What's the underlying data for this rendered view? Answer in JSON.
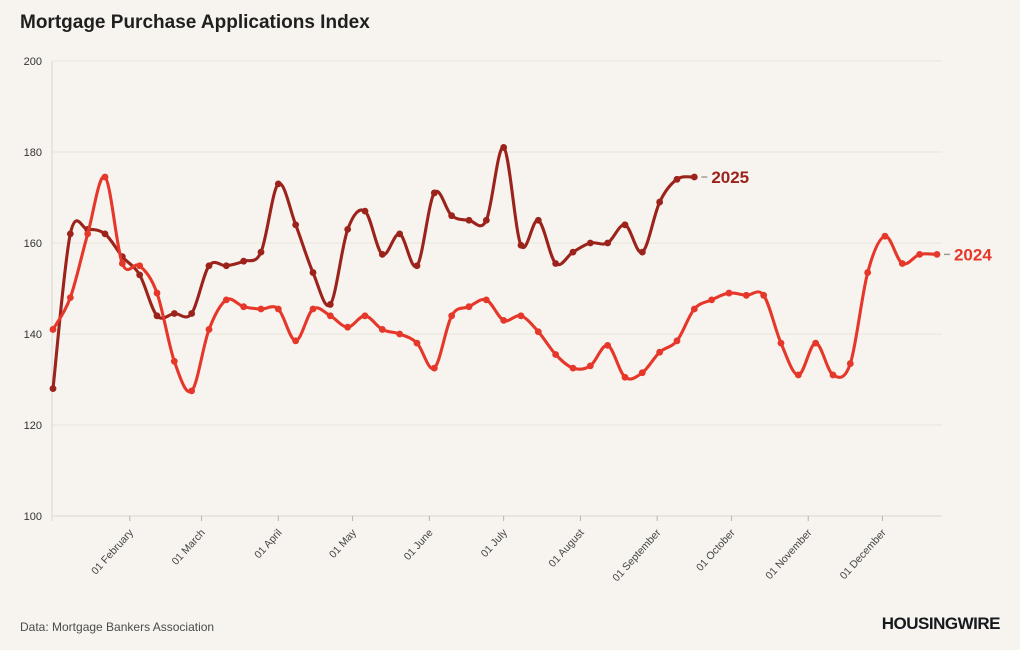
{
  "title": "Mortgage Purchase Applications Index",
  "footer": {
    "source": "Data: Mortgage Bankers Association",
    "brand": "HOUSINGWIRE"
  },
  "colors": {
    "background": "#f7f4ef",
    "grid": "#e7e3dc",
    "axis": "#d9d5ce",
    "tick": "#b7b3ac",
    "y_label": "#333333",
    "x_label": "#444444",
    "leader_dash": "#9a968f",
    "series_2025": "#9c231c",
    "series_2024": "#e5382b"
  },
  "chart_data": {
    "type": "line",
    "title": "Mortgage Purchase Applications Index",
    "xlabel": "",
    "ylabel": "",
    "ylim": [
      100,
      200
    ],
    "grid": "horizontal",
    "legend_position": "line-end-labels",
    "x_unit": "week",
    "y_axis": {
      "ticks": [
        100,
        120,
        140,
        160,
        180,
        200
      ],
      "range": [
        100,
        200
      ]
    },
    "x_axis": {
      "months": [
        {
          "label": "01 February",
          "day": 31
        },
        {
          "label": "01 March",
          "day": 60
        },
        {
          "label": "01 April",
          "day": 91
        },
        {
          "label": "01 May",
          "day": 121
        },
        {
          "label": "01 June",
          "day": 152
        },
        {
          "label": "01 July",
          "day": 182
        },
        {
          "label": "01 August",
          "day": 213
        },
        {
          "label": "01 September",
          "day": 244
        },
        {
          "label": "01 October",
          "day": 274
        },
        {
          "label": "01 November",
          "day": 305
        },
        {
          "label": "01 December",
          "day": 335
        }
      ]
    },
    "series": [
      {
        "name": "2025",
        "color": "#9c231c",
        "values": [
          128,
          162,
          163,
          162,
          157,
          153,
          144,
          144.5,
          144.5,
          155,
          155,
          156,
          158,
          173,
          164,
          153.5,
          146.5,
          163,
          167,
          157.5,
          162,
          155,
          171,
          166,
          165,
          165,
          181,
          159.5,
          165,
          155.5,
          158,
          160,
          160,
          164,
          158,
          169,
          174,
          174.5
        ]
      },
      {
        "name": "2024",
        "color": "#e5382b",
        "values": [
          141,
          148,
          162,
          174.5,
          155.5,
          155,
          149,
          134,
          127.5,
          141,
          147.5,
          146,
          145.5,
          145.5,
          138.5,
          145.5,
          144,
          141.5,
          144,
          141,
          140,
          138,
          132.5,
          144,
          146,
          147.5,
          143,
          144,
          140.5,
          135.5,
          132.5,
          133,
          137.5,
          130.5,
          131.5,
          136,
          138.5,
          145.5,
          147.5,
          149,
          148.5,
          148.5,
          138,
          131,
          138,
          131,
          133.5,
          153.5,
          161.5,
          155.5,
          157.5,
          157.5
        ]
      }
    ]
  }
}
